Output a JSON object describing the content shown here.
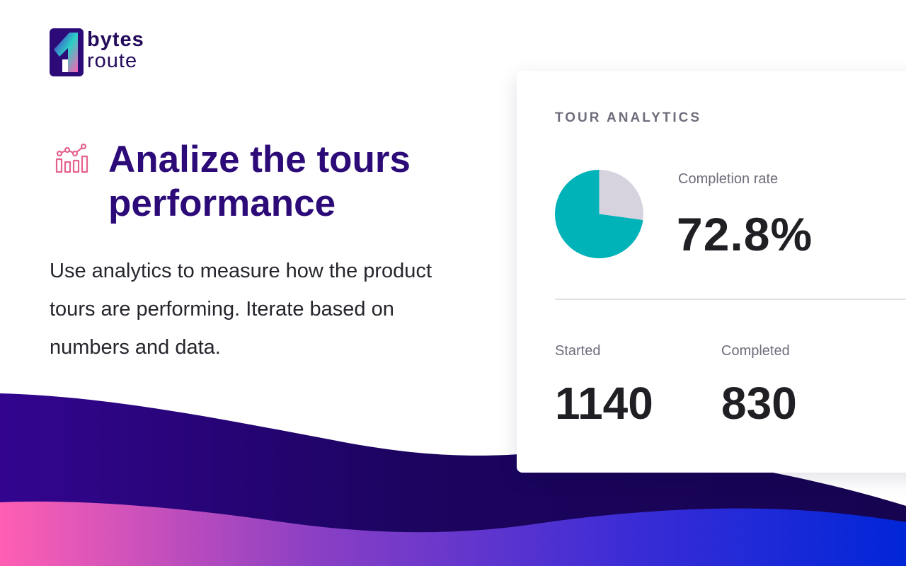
{
  "brand": {
    "line1": "bytes",
    "line2": "route"
  },
  "feature": {
    "icon": "analytics-chart-icon",
    "headline": "Analize the tours performance",
    "description": "Use analytics to measure how the product tours are performing. Iterate based on numbers and data."
  },
  "analytics": {
    "title": "TOUR ANALYTICS",
    "completion_rate_label": "Completion rate",
    "completion_rate_value": "72.8%",
    "started_label": "Started",
    "started_value": "1140",
    "completed_label": "Completed",
    "completed_value": "830",
    "pie_fraction": 0.728
  },
  "colors": {
    "brand_purple": "#2c0a78",
    "pie_teal": "#00b3b8",
    "pie_rest": "#d6d3df",
    "wave_dark": "#1a0555",
    "wave_pink": "#ff5fb3",
    "wave_blue": "#0026d8"
  }
}
